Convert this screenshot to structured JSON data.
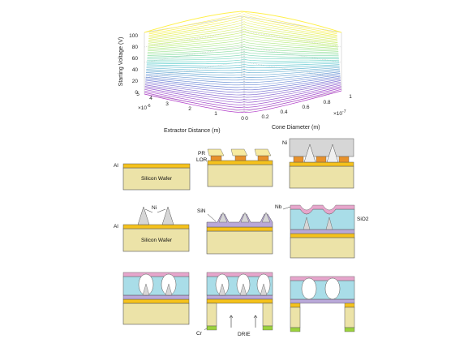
{
  "surface_plot": {
    "zlabel": "Starting Voltage (V)",
    "z_ticks": [
      "0",
      "20",
      "40",
      "60",
      "80",
      "100"
    ],
    "y_axis_label": "Extractor Distance (m)",
    "y_ticks": [
      "0",
      "1",
      "2",
      "3",
      "4",
      "5"
    ],
    "y_exponent": "×10",
    "y_exponent_power": "-6",
    "x_axis_label": "Cone Diameter (m)",
    "x_ticks": [
      "0",
      "0.2",
      "0.4",
      "0.6",
      "0.8",
      "1"
    ],
    "x_exponent": "×10",
    "x_exponent_power": "-7",
    "colormap_low": "#b03ac8",
    "colormap_high": "#fff04a"
  },
  "chart_data": {
    "type": "surface",
    "xlabel": "Cone Diameter (m)",
    "ylabel": "Extractor Distance (m)",
    "zlabel": "Starting Voltage (V)",
    "xlim": [
      0,
      1e-07
    ],
    "ylim": [
      0,
      5e-06
    ],
    "zlim": [
      0,
      100
    ],
    "x": [
      0,
      2e-08,
      4e-08,
      6e-08,
      8e-08,
      1e-07
    ],
    "y": [
      0,
      1e-06,
      2e-06,
      3e-06,
      4e-06,
      5e-06
    ],
    "z_max": 100,
    "z_min": 0
  },
  "process": {
    "step1": {
      "metal_label": "Al",
      "wafer_label": "Silicon Wafer"
    },
    "step2": {
      "pr_label": "PR",
      "lor_label": "LOR"
    },
    "step3": {
      "ni_label": "Ni"
    },
    "step4": {
      "ni_label": "Ni",
      "metal_label": "Al",
      "wafer_label": "Silicon Wafer"
    },
    "step5": {
      "sin_label": "SiN"
    },
    "step6": {
      "nb_label": "Nb",
      "oxide_label": "SiO2"
    },
    "step8": {
      "cr_label": "Cr",
      "drie_label": "DRIE"
    }
  },
  "colors": {
    "wafer": "#ece3a8",
    "aluminum": "#f5c21c",
    "lor": "#e8912a",
    "photoresist": "#f6eaa0",
    "nickel": "#d6d6d6",
    "silicon_nitride": "#b9a8d8",
    "oxide": "#a9dde8",
    "niobium": "#e6a6cc",
    "chromium": "#9bd23c"
  }
}
